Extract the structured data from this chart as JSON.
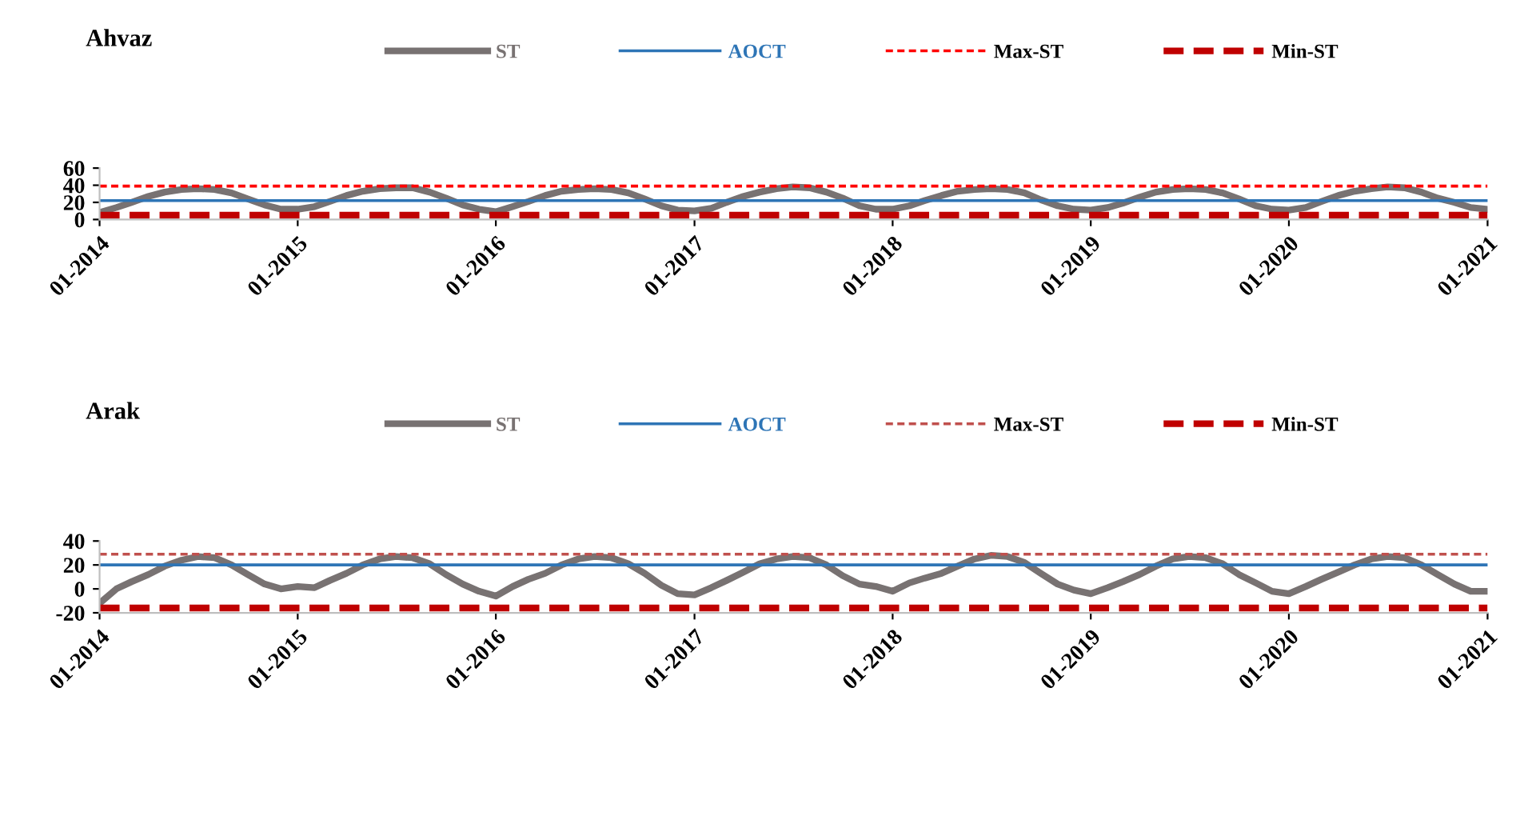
{
  "chart_data": [
    {
      "type": "line",
      "title": "Ahvaz",
      "legend": "top",
      "grid": false,
      "xlim": [
        "2014-01",
        "2021-01"
      ],
      "ylim": [
        0,
        60
      ],
      "yticks": [
        0,
        20,
        40,
        60
      ],
      "xticks": [
        {
          "value": "2014-01",
          "label": "01-2014"
        },
        {
          "value": "2015-01",
          "label": "01-2015"
        },
        {
          "value": "2016-01",
          "label": "01-2016"
        },
        {
          "value": "2017-01",
          "label": "01-2017"
        },
        {
          "value": "2018-01",
          "label": "01-2018"
        },
        {
          "value": "2019-01",
          "label": "01-2019"
        },
        {
          "value": "2020-01",
          "label": "01-2020"
        },
        {
          "value": "2021-01",
          "label": "01-2021"
        }
      ],
      "x": [
        "2014-01",
        "2014-02",
        "2014-03",
        "2014-04",
        "2014-05",
        "2014-06",
        "2014-07",
        "2014-08",
        "2014-09",
        "2014-10",
        "2014-11",
        "2014-12",
        "2015-01",
        "2015-02",
        "2015-03",
        "2015-04",
        "2015-05",
        "2015-06",
        "2015-07",
        "2015-08",
        "2015-09",
        "2015-10",
        "2015-11",
        "2015-12",
        "2016-01",
        "2016-02",
        "2016-03",
        "2016-04",
        "2016-05",
        "2016-06",
        "2016-07",
        "2016-08",
        "2016-09",
        "2016-10",
        "2016-11",
        "2016-12",
        "2017-01",
        "2017-02",
        "2017-03",
        "2017-04",
        "2017-05",
        "2017-06",
        "2017-07",
        "2017-08",
        "2017-09",
        "2017-10",
        "2017-11",
        "2017-12",
        "2018-01",
        "2018-02",
        "2018-03",
        "2018-04",
        "2018-05",
        "2018-06",
        "2018-07",
        "2018-08",
        "2018-09",
        "2018-10",
        "2018-11",
        "2018-12",
        "2019-01",
        "2019-02",
        "2019-03",
        "2019-04",
        "2019-05",
        "2019-06",
        "2019-07",
        "2019-08",
        "2019-09",
        "2019-10",
        "2019-11",
        "2019-12",
        "2020-01",
        "2020-02",
        "2020-03",
        "2020-04",
        "2020-05",
        "2020-06",
        "2020-07",
        "2020-08",
        "2020-09",
        "2020-10",
        "2020-11",
        "2020-12",
        "2021-01"
      ],
      "series": [
        {
          "name": "ST",
          "color": "#787272",
          "line_style": "solid",
          "values": [
            8,
            14,
            20,
            27,
            32,
            35,
            36,
            35,
            31,
            24,
            17,
            12,
            12,
            15,
            21,
            28,
            33,
            36,
            37,
            37,
            32,
            25,
            17,
            12,
            9,
            15,
            21,
            28,
            33,
            35,
            36,
            35,
            31,
            24,
            16,
            11,
            10,
            13,
            20,
            27,
            32,
            36,
            38,
            37,
            32,
            25,
            16,
            12,
            12,
            16,
            22,
            28,
            33,
            35,
            36,
            35,
            31,
            23,
            16,
            12,
            11,
            14,
            19,
            26,
            32,
            35,
            36,
            35,
            31,
            24,
            16,
            12,
            11,
            14,
            21,
            28,
            33,
            36,
            38,
            37,
            32,
            25,
            20,
            14,
            12
          ]
        },
        {
          "name": "AOCT",
          "color": "#2e75b6",
          "line_style": "solid",
          "x": [
            "2014-01",
            "2021-01"
          ],
          "values": [
            22,
            22
          ]
        },
        {
          "name": "Max-ST",
          "color": "#ff0000",
          "line_style": "dotted",
          "x": [
            "2014-01",
            "2021-01"
          ],
          "values": [
            39,
            39
          ]
        },
        {
          "name": "Min-ST",
          "color": "#c00000",
          "line_style": "dashed",
          "x": [
            "2014-01",
            "2021-01"
          ],
          "values": [
            5,
            5
          ]
        }
      ]
    },
    {
      "type": "line",
      "title": "Arak",
      "legend": "top",
      "grid": false,
      "xlim": [
        "2014-01",
        "2021-01"
      ],
      "ylim": [
        -20,
        40
      ],
      "yticks": [
        -20,
        0,
        20,
        40
      ],
      "xticks": [
        {
          "value": "2014-01",
          "label": "01-2014"
        },
        {
          "value": "2015-01",
          "label": "01-2015"
        },
        {
          "value": "2016-01",
          "label": "01-2016"
        },
        {
          "value": "2017-01",
          "label": "01-2017"
        },
        {
          "value": "2018-01",
          "label": "01-2018"
        },
        {
          "value": "2019-01",
          "label": "01-2019"
        },
        {
          "value": "2020-01",
          "label": "01-2020"
        },
        {
          "value": "2021-01",
          "label": "01-2021"
        }
      ],
      "x": [
        "2014-01",
        "2014-02",
        "2014-03",
        "2014-04",
        "2014-05",
        "2014-06",
        "2014-07",
        "2014-08",
        "2014-09",
        "2014-10",
        "2014-11",
        "2014-12",
        "2015-01",
        "2015-02",
        "2015-03",
        "2015-04",
        "2015-05",
        "2015-06",
        "2015-07",
        "2015-08",
        "2015-09",
        "2015-10",
        "2015-11",
        "2015-12",
        "2016-01",
        "2016-02",
        "2016-03",
        "2016-04",
        "2016-05",
        "2016-06",
        "2016-07",
        "2016-08",
        "2016-09",
        "2016-10",
        "2016-11",
        "2016-12",
        "2017-01",
        "2017-02",
        "2017-03",
        "2017-04",
        "2017-05",
        "2017-06",
        "2017-07",
        "2017-08",
        "2017-09",
        "2017-10",
        "2017-11",
        "2017-12",
        "2018-01",
        "2018-02",
        "2018-03",
        "2018-04",
        "2018-05",
        "2018-06",
        "2018-07",
        "2018-08",
        "2018-09",
        "2018-10",
        "2018-11",
        "2018-12",
        "2019-01",
        "2019-02",
        "2019-03",
        "2019-04",
        "2019-05",
        "2019-06",
        "2019-07",
        "2019-08",
        "2019-09",
        "2019-10",
        "2019-11",
        "2019-12",
        "2020-01",
        "2020-02",
        "2020-03",
        "2020-04",
        "2020-05",
        "2020-06",
        "2020-07",
        "2020-08",
        "2020-09",
        "2020-10",
        "2020-11",
        "2020-12",
        "2021-01"
      ],
      "series": [
        {
          "name": "ST",
          "color": "#787272",
          "line_style": "solid",
          "values": [
            -12,
            0,
            6,
            12,
            19,
            24,
            27,
            26,
            20,
            12,
            4,
            0,
            2,
            1,
            7,
            13,
            20,
            25,
            27,
            26,
            21,
            12,
            4,
            -2,
            -6,
            2,
            8,
            13,
            20,
            25,
            27,
            26,
            21,
            13,
            3,
            -4,
            -5,
            1,
            7,
            14,
            21,
            25,
            27,
            26,
            20,
            11,
            4,
            2,
            -2,
            5,
            9,
            13,
            19,
            25,
            28,
            27,
            22,
            13,
            4,
            -1,
            -4,
            1,
            6,
            12,
            19,
            25,
            27,
            26,
            21,
            12,
            5,
            -2,
            -4,
            2,
            8,
            14,
            20,
            25,
            27,
            26,
            20,
            12,
            4,
            -2,
            -2
          ]
        },
        {
          "name": "AOCT",
          "color": "#2e75b6",
          "line_style": "solid",
          "x": [
            "2014-01",
            "2021-01"
          ],
          "values": [
            20,
            20
          ]
        },
        {
          "name": "Max-ST",
          "color": "#c0504d",
          "line_style": "dotted",
          "x": [
            "2014-01",
            "2021-01"
          ],
          "values": [
            29,
            29
          ]
        },
        {
          "name": "Min-ST",
          "color": "#c00000",
          "line_style": "dashed",
          "x": [
            "2014-01",
            "2021-01"
          ],
          "values": [
            -16,
            -16
          ]
        }
      ]
    }
  ]
}
